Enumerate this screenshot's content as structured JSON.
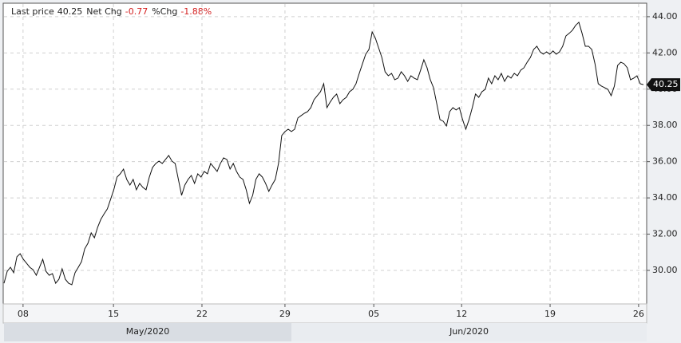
{
  "chart_data": {
    "type": "line",
    "header": [
      {
        "label": "Last price",
        "value": "40.25",
        "color": "#222222"
      },
      {
        "label": "Net Chg",
        "value": "-0.77",
        "color": "#d42020"
      },
      {
        "label": "%Chg",
        "value": "-1.88%",
        "color": "#d42020"
      }
    ],
    "last_price": {
      "value": 40.25,
      "label": "40.25"
    },
    "series": [
      {
        "color": "#111111",
        "values": [
          29.29,
          29.95,
          30.17,
          29.87,
          30.75,
          30.92,
          30.61,
          30.39,
          30.17,
          30.04,
          29.73,
          30.17,
          30.61,
          29.95,
          29.73,
          29.82,
          29.29,
          29.51,
          30.09,
          29.51,
          29.29,
          29.21,
          29.87,
          30.17,
          30.48,
          31.19,
          31.5,
          32.07,
          31.8,
          32.38,
          32.82,
          33.12,
          33.39,
          33.92,
          34.45,
          35.15,
          35.33,
          35.59,
          35.02,
          34.71,
          35.02,
          34.45,
          34.8,
          34.58,
          34.45,
          35.15,
          35.68,
          35.9,
          36.03,
          35.9,
          36.12,
          36.34,
          36.03,
          35.9,
          35.02,
          34.14,
          34.71,
          35.02,
          35.24,
          34.8,
          35.33,
          35.15,
          35.46,
          35.33,
          35.9,
          35.68,
          35.46,
          35.9,
          36.21,
          36.12,
          35.59,
          35.9,
          35.46,
          35.15,
          35.02,
          34.45,
          33.7,
          34.14,
          35.02,
          35.33,
          35.15,
          34.8,
          34.36,
          34.71,
          35.02,
          35.9,
          37.44,
          37.66,
          37.79,
          37.66,
          37.79,
          38.41,
          38.54,
          38.67,
          38.76,
          38.98,
          39.42,
          39.64,
          39.86,
          40.3,
          38.98,
          39.29,
          39.55,
          39.73,
          39.2,
          39.42,
          39.55,
          39.86,
          39.99,
          40.3,
          40.87,
          41.4,
          41.93,
          42.19,
          43.16,
          42.81,
          42.28,
          41.75,
          40.96,
          40.74,
          40.87,
          40.52,
          40.61,
          40.96,
          40.74,
          40.43,
          40.74,
          40.61,
          40.52,
          41.05,
          41.62,
          41.18,
          40.52,
          40.08,
          39.2,
          38.32,
          38.23,
          37.97,
          38.76,
          38.98,
          38.85,
          38.98,
          38.32,
          37.79,
          38.32,
          38.98,
          39.73,
          39.55,
          39.86,
          39.99,
          40.61,
          40.3,
          40.74,
          40.52,
          40.87,
          40.43,
          40.74,
          40.61,
          40.87,
          40.74,
          41.05,
          41.18,
          41.49,
          41.75,
          42.19,
          42.37,
          42.06,
          41.93,
          42.06,
          41.93,
          42.11,
          41.93,
          42.06,
          42.37,
          42.94,
          43.08,
          43.25,
          43.52,
          43.69,
          43.08,
          42.37,
          42.37,
          42.19,
          41.4,
          40.3,
          40.17,
          40.08,
          39.99,
          39.64,
          40.17,
          41.31,
          41.49,
          41.4,
          41.18,
          40.52,
          40.61,
          40.74,
          40.3,
          40.25
        ]
      }
    ],
    "xlim": [
      0,
      199
    ],
    "xticks": [
      {
        "value": 5.9,
        "label": "08"
      },
      {
        "value": 33.9,
        "label": "15"
      },
      {
        "value": 61.3,
        "label": "22"
      },
      {
        "value": 87,
        "label": "29"
      },
      {
        "value": 114.5,
        "label": "05"
      },
      {
        "value": 141.7,
        "label": "12"
      },
      {
        "value": 169.1,
        "label": "19"
      },
      {
        "value": 196.5,
        "label": "26"
      }
    ],
    "periods": [
      {
        "label": "May/2020",
        "start": 0,
        "end": 89
      },
      {
        "label": "Jun/2020",
        "start": 89,
        "end": 199
      }
    ],
    "ylim": [
      28.15,
      44.7
    ],
    "yticks": [
      {
        "value": 30,
        "label": "30.00"
      },
      {
        "value": 32,
        "label": "32.00"
      },
      {
        "value": 34,
        "label": "34.00"
      },
      {
        "value": 36,
        "label": "36.00"
      },
      {
        "value": 38,
        "label": "38.00"
      },
      {
        "value": 40,
        "label": "40.00"
      },
      {
        "value": 42,
        "label": "42.00"
      },
      {
        "value": 44,
        "label": "44.00"
      }
    ],
    "grid": true
  }
}
